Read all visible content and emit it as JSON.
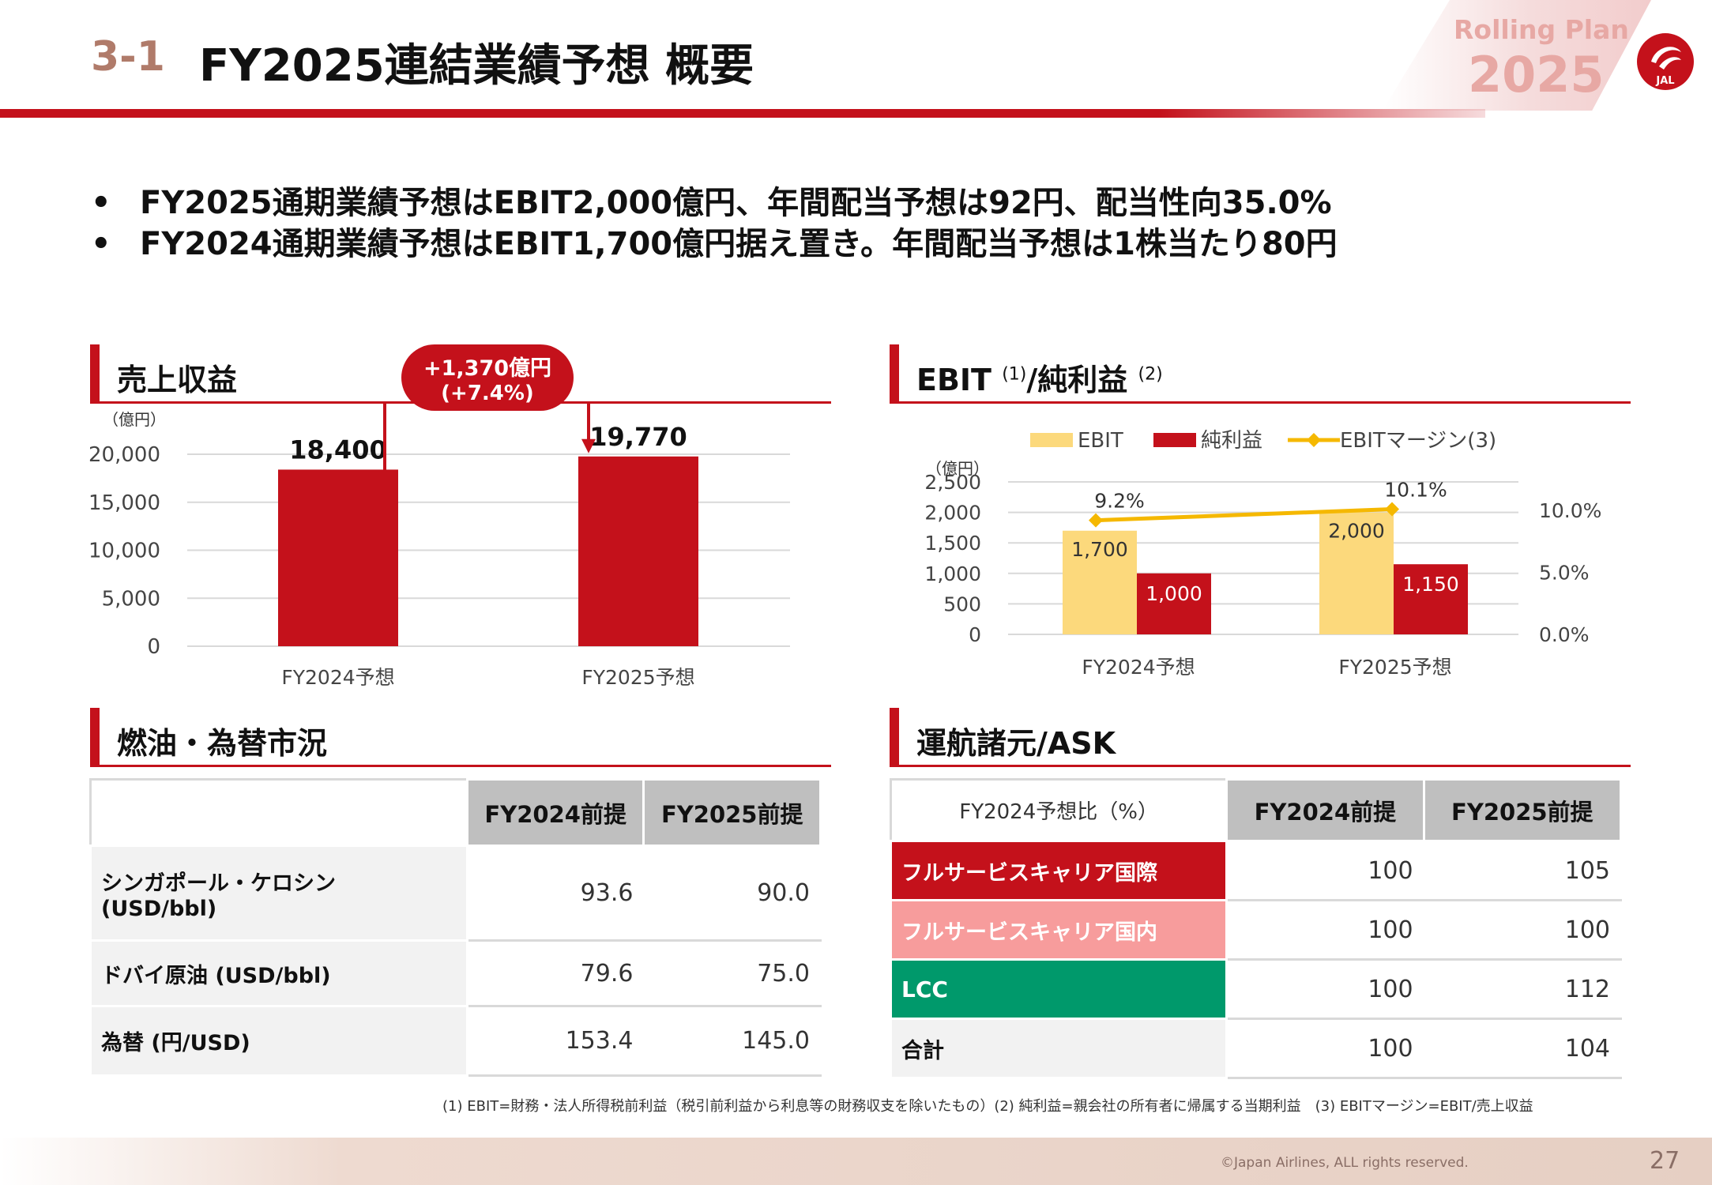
{
  "header": {
    "section_no": "3-1",
    "title": "FY2025連結業績予想 概要",
    "plan_label": "Rolling Plan",
    "plan_year": "2025",
    "logo_text": "JAL"
  },
  "bullets": [
    "FY2025通期業績予想はEBIT2,000億円、年間配当予想は92円、配当性向35.0%",
    "FY2024通期業績予想はEBIT1,700億円据え置き。年間配当予想は1株当たり80円"
  ],
  "bullet_mark": "•",
  "colors": {
    "accent": "#c4111b",
    "ebit": "#fcd97c",
    "net": "#c4111b",
    "margin": "#f5b800",
    "fsc_intl": "#c4111b",
    "fsc_dom": "#f79c9c",
    "lcc": "#00996b"
  },
  "revenue_section": {
    "title": "売上収益",
    "delta_line1": "+1,370億円",
    "delta_line2": "(+7.4%)"
  },
  "ebit_section": {
    "title_a": "EBIT",
    "sup_a": "(1)",
    "title_b": "/純利益",
    "sup_b": "(2)"
  },
  "fuel_section": {
    "title": "燃油・為替市況",
    "columns": [
      "FY2024前提",
      "FY2025前提"
    ],
    "rows": [
      {
        "label_1": "シンガポール・ケロシン",
        "label_2": "(USD/bbl)",
        "v1": "93.6",
        "v2": "90.0"
      },
      {
        "label_1": "ドバイ原油 (USD/bbl)",
        "label_2": "",
        "v1": "79.6",
        "v2": "75.0"
      },
      {
        "label_1": "為替 (円/USD)",
        "label_2": "",
        "v1": "153.4",
        "v2": "145.0"
      }
    ]
  },
  "ask_section": {
    "title": "運航諸元/ASK",
    "corner": "FY2024予想比（%）",
    "columns": [
      "FY2024前提",
      "FY2025前提"
    ],
    "rows": [
      {
        "label": "フルサービスキャリア国際",
        "v1": "100",
        "v2": "105"
      },
      {
        "label": "フルサービスキャリア国内",
        "v1": "100",
        "v2": "100"
      },
      {
        "label": "LCC",
        "v1": "100",
        "v2": "112"
      },
      {
        "label": "合計",
        "v1": "100",
        "v2": "104"
      }
    ]
  },
  "chart_data": [
    {
      "type": "bar",
      "title": "売上収益",
      "unit_label": "（億円）",
      "categories": [
        "FY2024予想",
        "FY2025予想"
      ],
      "values": [
        18400,
        19770
      ],
      "value_labels": [
        "18,400",
        "19,770"
      ],
      "ylim": [
        0,
        20000
      ],
      "yticks": [
        0,
        5000,
        10000,
        15000,
        20000
      ],
      "ytick_labels": [
        "0",
        "5,000",
        "10,000",
        "15,000",
        "20,000"
      ],
      "grid": true
    },
    {
      "type": "bar",
      "title": "EBIT/純利益",
      "unit_label": "（億円）",
      "categories": [
        "FY2024予想",
        "FY2025予想"
      ],
      "series": [
        {
          "name": "EBIT",
          "values": [
            1700,
            2000
          ],
          "labels": [
            "1,700",
            "2,000"
          ]
        },
        {
          "name": "純利益",
          "values": [
            1000,
            1150
          ],
          "labels": [
            "1,000",
            "1,150"
          ]
        },
        {
          "name": "EBITマージン(3)",
          "type": "line",
          "axis": "secondary",
          "values": [
            9.2,
            10.1
          ],
          "labels": [
            "9.2%",
            "10.1%"
          ]
        }
      ],
      "ylim": [
        0,
        2500
      ],
      "yticks": [
        0,
        500,
        1000,
        1500,
        2000,
        2500
      ],
      "ytick_labels": [
        "0",
        "500",
        "1,000",
        "1,500",
        "2,000",
        "2,500"
      ],
      "y2lim": [
        0,
        12.3
      ],
      "y2ticks": [
        0,
        5,
        10
      ],
      "y2tick_labels": [
        "0.0%",
        "5.0%",
        "10.0%"
      ],
      "legend": "top",
      "grid": true
    }
  ],
  "footnote": "(1) EBIT=財務・法人所得税前利益（税引前利益から利息等の財務収支を除いたもの）(2) 純利益=親会社の所有者に帰属する当期利益　(3) EBITマージン=EBIT/売上収益",
  "copyright": "©Japan Airlines, ALL rights reserved.",
  "page_number": "27"
}
